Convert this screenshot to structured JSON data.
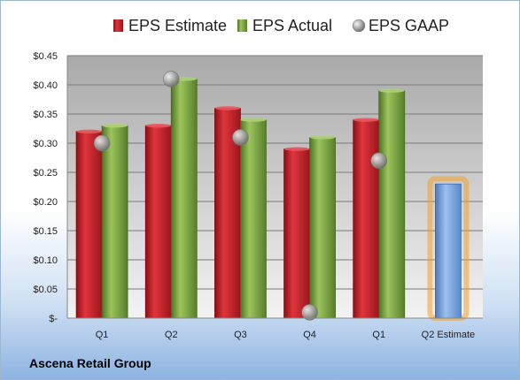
{
  "chart_data": {
    "type": "bar",
    "categories": [
      "Q1",
      "Q2",
      "Q3",
      "Q4",
      "Q1",
      "Q2 Estimate"
    ],
    "series": [
      {
        "name": "EPS Estimate",
        "color": "#c0202a",
        "values": [
          0.32,
          0.33,
          0.36,
          0.29,
          0.34,
          null
        ]
      },
      {
        "name": "EPS Actual",
        "color": "#76a23a",
        "values": [
          0.33,
          0.41,
          0.34,
          0.31,
          0.39,
          null
        ]
      },
      {
        "name": "EPS GAAP",
        "color": "#a9a9a9",
        "marker": "circle",
        "values": [
          0.3,
          0.41,
          0.31,
          0.01,
          0.27,
          null
        ]
      }
    ],
    "forecast": {
      "category": "Q2 Estimate",
      "value": 0.23,
      "color": "#6f9fd8",
      "glow": "#f0a030"
    },
    "ylim": [
      0,
      0.45
    ],
    "yticks": [
      0,
      0.05,
      0.1,
      0.15,
      0.2,
      0.25,
      0.3,
      0.35,
      0.4,
      0.45
    ],
    "ytick_labels": [
      "$-",
      "$0.05",
      "$0.10",
      "$0.15",
      "$0.20",
      "$0.25",
      "$0.30",
      "$0.35",
      "$0.40",
      "$0.45"
    ],
    "grid": true,
    "legend_position": "top",
    "title": "",
    "xlabel": "",
    "ylabel": ""
  },
  "company_name": "Ascena Retail Group"
}
